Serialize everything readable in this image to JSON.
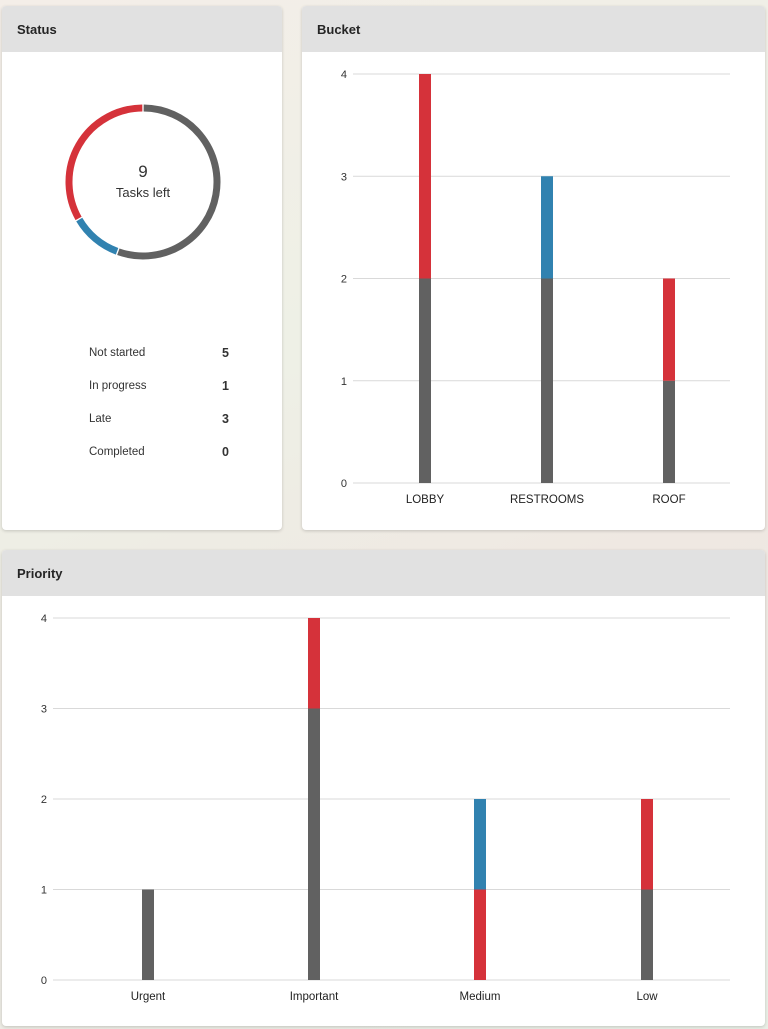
{
  "colors": {
    "not_started": "#616161",
    "in_progress": "#3182b0",
    "late": "#d5323a",
    "completed": "#3a9b3f"
  },
  "status": {
    "title": "Status",
    "donut": {
      "count": "9",
      "label": "Tasks left"
    },
    "items": [
      {
        "label": "Not started",
        "count": "5",
        "value": 5,
        "color": "#616161"
      },
      {
        "label": "In progress",
        "count": "1",
        "value": 1,
        "color": "#3182b0"
      },
      {
        "label": "Late",
        "count": "3",
        "value": 3,
        "color": "#d5323a"
      },
      {
        "label": "Completed",
        "count": "0",
        "value": 0,
        "color": "#3a9b3f"
      }
    ]
  },
  "bucket": {
    "title": "Bucket",
    "chart_data": {
      "type": "bar",
      "stacked": true,
      "categories": [
        "LOBBY",
        "RESTROOMS",
        "ROOF"
      ],
      "ylim": [
        0,
        4
      ],
      "yticks": [
        "0",
        "1",
        "2",
        "3",
        "4"
      ],
      "series": [
        {
          "name": "Not started",
          "color": "#616161",
          "values": [
            2,
            2,
            1
          ]
        },
        {
          "name": "In progress",
          "color": "#3182b0",
          "values": [
            0,
            1,
            0
          ]
        },
        {
          "name": "Late",
          "color": "#d5323a",
          "values": [
            2,
            0,
            1
          ]
        }
      ]
    }
  },
  "priority": {
    "title": "Priority",
    "chart_data": {
      "type": "bar",
      "stacked": true,
      "categories": [
        "Urgent",
        "Important",
        "Medium",
        "Low"
      ],
      "ylim": [
        0,
        4
      ],
      "yticks": [
        "0",
        "1",
        "2",
        "3",
        "4"
      ],
      "series": [
        {
          "name": "Not started",
          "color": "#616161",
          "values": [
            1,
            3,
            0,
            1
          ]
        },
        {
          "name": "Late",
          "color": "#d5323a",
          "values": [
            0,
            1,
            1,
            1
          ]
        },
        {
          "name": "In progress",
          "color": "#3182b0",
          "values": [
            0,
            0,
            1,
            0
          ]
        }
      ]
    }
  }
}
